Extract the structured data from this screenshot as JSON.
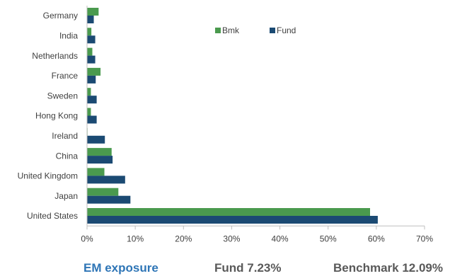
{
  "chart_data": {
    "type": "bar",
    "orientation": "horizontal",
    "categories": [
      "Germany",
      "India",
      "Netherlands",
      "France",
      "Sweden",
      "Hong Kong",
      "Ireland",
      "China",
      "United Kingdom",
      "Japan",
      "United States"
    ],
    "series": [
      {
        "name": "Bmk",
        "color": "#4a9a4e",
        "values": [
          2.4,
          0.9,
          1.1,
          2.8,
          0.8,
          0.8,
          0.1,
          5.1,
          3.6,
          6.5,
          58.7
        ]
      },
      {
        "name": "Fund",
        "color": "#1b4a73",
        "values": [
          1.4,
          1.7,
          1.7,
          1.8,
          2.0,
          2.0,
          3.7,
          5.3,
          7.9,
          9.0,
          60.3
        ]
      }
    ],
    "xlim": [
      0,
      70
    ],
    "x_ticks": [
      "0%",
      "10%",
      "20%",
      "30%",
      "40%",
      "50%",
      "60%",
      "70%"
    ],
    "legend_position": "top-right",
    "grid": false
  },
  "footer": {
    "em_label": "EM exposure",
    "fund_label": "Fund 7.23%",
    "benchmark_label": "Benchmark 12.09%"
  }
}
